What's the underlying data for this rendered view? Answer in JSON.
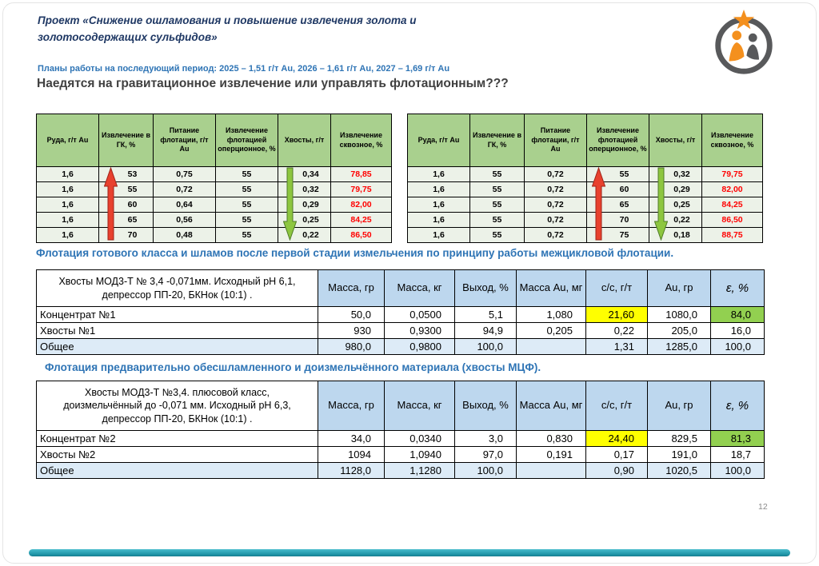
{
  "header": {
    "title_line1": "Проект «Снижение ошламования и повышение извлечения золота и",
    "title_line2": "золотосодержащих сульфидов»",
    "plans": "Планы работы на последующий период:  2025 – 1,51 г/т Au,  2026 – 1,61 г/т Au,  2027 – 1,69 г/т Au",
    "question": "Наедятся на гравитационное извлечение или управлять флотационным???"
  },
  "green_tables": {
    "headers": [
      "Руда, г/т Au",
      "Извлечение в ГК, %",
      "Питание флотации, г/т Au",
      "Извлечение флотацией оперционное, %",
      "Хвосты, г/т",
      "Извлечение сквозное, %"
    ],
    "left": {
      "rows": [
        [
          "1,6",
          "53",
          "0,75",
          "55",
          "0,34",
          "78,85"
        ],
        [
          "1,6",
          "55",
          "0,72",
          "55",
          "0,32",
          "79,75"
        ],
        [
          "1,6",
          "60",
          "0,64",
          "55",
          "0,29",
          "82,00"
        ],
        [
          "1,6",
          "65",
          "0,56",
          "55",
          "0,25",
          "84,25"
        ],
        [
          "1,6",
          "70",
          "0,48",
          "55",
          "0,22",
          "86,50"
        ]
      ]
    },
    "right": {
      "rows": [
        [
          "1,6",
          "55",
          "0,72",
          "55",
          "0,32",
          "79,75"
        ],
        [
          "1,6",
          "55",
          "0,72",
          "60",
          "0,29",
          "82,00"
        ],
        [
          "1,6",
          "55",
          "0,72",
          "65",
          "0,25",
          "84,25"
        ],
        [
          "1,6",
          "55",
          "0,72",
          "70",
          "0,22",
          "86,50"
        ],
        [
          "1,6",
          "55",
          "0,72",
          "75",
          "0,18",
          "88,75"
        ]
      ]
    }
  },
  "notes": {
    "note1": "Флотация готового класса и шламов после первой стадии измельчения по принципу работы межцикловой флотации.",
    "note2": "Флотация предварительно обесшламленного и доизмельчённого материала (хвосты МЦФ)."
  },
  "table1": {
    "label": "Хвосты МОД3-Т № 3,4 -0,071мм. Исходный рН 6,1, депрессор ПП-20, БКНок (10:1) .",
    "headers": [
      "Масса, гр",
      "Масса, кг",
      "Выход, %",
      "Масса Au, мг",
      "с/с, г/т",
      "Au, гр",
      "ε, %"
    ],
    "rows": [
      {
        "name": "Концентрат №1",
        "values": [
          "50,0",
          "0,0500",
          "5,1",
          "1,080",
          "21,60",
          "1080,0",
          "84,0"
        ]
      },
      {
        "name": "Хвосты №1",
        "values": [
          "930",
          "0,9300",
          "94,9",
          "0,205",
          "0,22",
          "205,0",
          "16,0"
        ]
      },
      {
        "name": "Общее",
        "values": [
          "980,0",
          "0,9800",
          "100,0",
          "",
          "1,31",
          "1285,0",
          "100,0"
        ]
      }
    ],
    "yellow_cells": [
      [
        0,
        4
      ],
      [
        2,
        4
      ]
    ],
    "green_cells": [
      [
        0,
        6
      ]
    ],
    "total_row_index": 2
  },
  "table2": {
    "label": "Хвосты МОД3-Т №3,4. плюсовой класс, доизмельчённый до -0,071 мм. Исходный рН 6,3, депрессор ПП-20, БКНок (10:1) .",
    "headers": [
      "Масса, гр",
      "Масса, кг",
      "Выход, %",
      "Масса Au, мг",
      "с/с, г/т",
      "Au, гр",
      "ε, %"
    ],
    "rows": [
      {
        "name": "Концентрат №2",
        "values": [
          "34,0",
          "0,0340",
          "3,0",
          "0,830",
          "24,40",
          "829,5",
          "81,3"
        ]
      },
      {
        "name": "Хвосты №2",
        "values": [
          "1094",
          "1,0940",
          "97,0",
          "0,191",
          "0,17",
          "191,0",
          "18,7"
        ]
      },
      {
        "name": "Общее",
        "values": [
          "1128,0",
          "1,1280",
          "100,0",
          "",
          "0,90",
          "1020,5",
          "100,0"
        ]
      }
    ],
    "yellow_cells": [
      [
        0,
        4
      ],
      [
        2,
        4
      ]
    ],
    "green_cells": [
      [
        0,
        6
      ]
    ],
    "total_row_index": 2
  },
  "footer": {
    "page_number": "12"
  },
  "colors": {
    "title_navy": "#1F3864",
    "accent_blue": "#2E74B5",
    "header_green": "#A9D08E",
    "header_blue": "#BDD7EE",
    "highlight_yellow": "#FFFF00",
    "highlight_green": "#92D050",
    "value_red": "#FF0000",
    "total_row_blue": "#DDEBF7",
    "bar_teal": "#2096A8",
    "arrow_red": "#E8412E",
    "arrow_green": "#8DC63F",
    "logo_orange": "#F4901E",
    "logo_gray": "#58595B"
  }
}
